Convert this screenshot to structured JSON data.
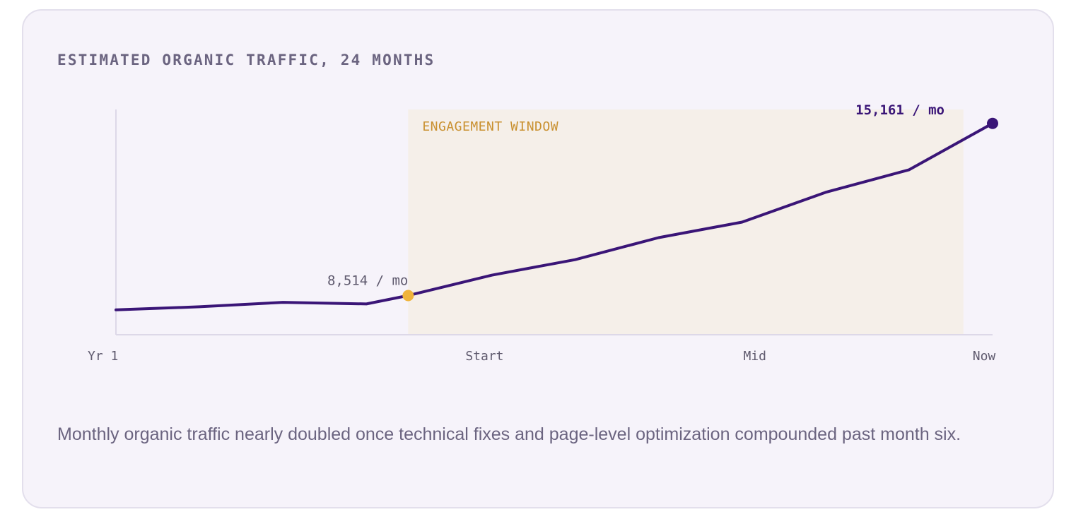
{
  "card": {
    "title": "ESTIMATED ORGANIC TRAFFIC, 24 MONTHS",
    "caption": "Monthly organic traffic nearly doubled once technical fixes and page-level optimization compounded past month six."
  },
  "colors": {
    "line": "#3a1577",
    "start_marker": "#f0b43c",
    "window_fill": "#f5efe9",
    "window_label": "#c9902f",
    "axis": "#ddd8e8",
    "tick_text": "#5f5a6e"
  },
  "chart_data": {
    "type": "line",
    "title": "ESTIMATED ORGANIC TRAFFIC, 24 MONTHS",
    "xlabel": "",
    "ylabel": "",
    "grid": false,
    "x_ticks": [
      {
        "label": "Yr 1",
        "month": 0
      },
      {
        "label": "Start",
        "month": 9
      },
      {
        "label": "Mid",
        "month": 15
      },
      {
        "label": "Now",
        "month": 21
      }
    ],
    "xlim": [
      0,
      21
    ],
    "ylim": [
      7000,
      15700
    ],
    "series": [
      {
        "x": [
          0,
          2,
          4,
          6,
          7,
          9,
          11,
          13,
          15,
          17,
          19,
          21
        ],
        "values": [
          7960,
          8080,
          8250,
          8190,
          8514,
          9300,
          9900,
          10750,
          11350,
          12500,
          13370,
          15161
        ]
      }
    ],
    "highlight_window": {
      "label": "ENGAGEMENT WINDOW",
      "x_start": 7,
      "x_end": 20.3
    },
    "annotations": [
      {
        "text": "8,514 / mo",
        "x": 7,
        "y": 8514,
        "marker": "start"
      },
      {
        "text": "15,161 / mo",
        "x": 21,
        "y": 15161,
        "marker": "end"
      }
    ]
  }
}
